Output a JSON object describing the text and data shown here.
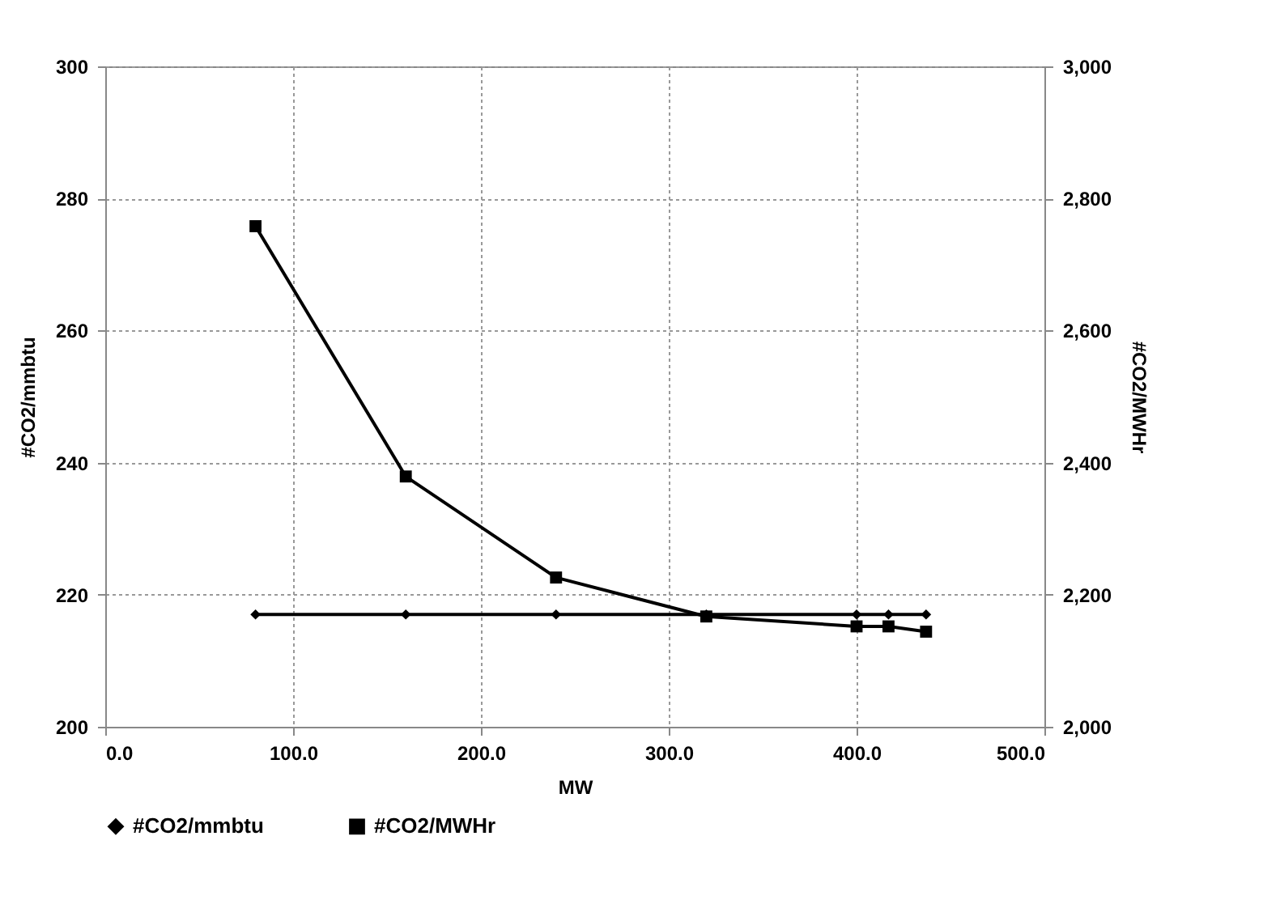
{
  "chart_data": {
    "type": "line",
    "xlabel": "MW",
    "ylabel": "#CO2/mmbtu",
    "y2label": "#CO2/MWHr",
    "x": [
      80,
      160,
      240,
      320,
      400,
      417,
      437
    ],
    "series": [
      {
        "name": "#CO2/mmbtu",
        "color": "#000000",
        "marker": "diamond",
        "values": [
          217,
          217,
          217,
          217,
          217,
          217,
          217
        ]
      },
      {
        "name": "#CO2/MWHr",
        "color": "#000000",
        "marker": "square",
        "axis": "y2",
        "values": [
          2758,
          2379,
          2226,
          2167,
          2152,
          2152,
          2144
        ]
      }
    ],
    "xlim": [
      0,
      500
    ],
    "xticks": [
      {
        "value": 0,
        "label": "0.0"
      },
      {
        "value": 100,
        "label": "100.0"
      },
      {
        "value": 200,
        "label": "200.0"
      },
      {
        "value": 300,
        "label": "300.0"
      },
      {
        "value": 400,
        "label": "400.0"
      },
      {
        "value": 500,
        "label": "500.0"
      }
    ],
    "ylim": [
      200,
      300
    ],
    "yticks": [
      200,
      220,
      240,
      260,
      280,
      300
    ],
    "y2lim": [
      2000,
      3000
    ],
    "y2ticks": [
      {
        "value": 2000,
        "label": "2,000"
      },
      {
        "value": 2200,
        "label": "2,200"
      },
      {
        "value": 2400,
        "label": "2,400"
      },
      {
        "value": 2600,
        "label": "2,600"
      },
      {
        "value": 2800,
        "label": "2,800"
      },
      {
        "value": 3000,
        "label": "3,000"
      }
    ],
    "grid": true,
    "legend": "bottom",
    "line_style": "solid"
  }
}
